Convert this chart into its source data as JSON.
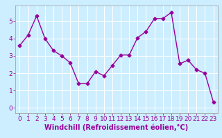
{
  "x": [
    0,
    1,
    2,
    3,
    4,
    5,
    6,
    7,
    8,
    9,
    10,
    11,
    12,
    13,
    14,
    15,
    16,
    17,
    18,
    19,
    20,
    21,
    22,
    23
  ],
  "y": [
    3.6,
    4.2,
    5.3,
    4.0,
    3.3,
    3.0,
    2.6,
    1.4,
    1.4,
    2.1,
    1.85,
    2.45,
    3.05,
    3.05,
    4.05,
    4.4,
    5.15,
    5.15,
    5.5,
    2.55,
    2.75,
    2.2,
    2.0,
    0.35
  ],
  "line_color": "#990099",
  "marker": "D",
  "marker_size": 2.5,
  "xlabel": "Windchill (Refroidissement éolien,°C)",
  "xlim": [
    -0.5,
    23.5
  ],
  "ylim": [
    -0.3,
    5.9
  ],
  "yticks": [
    0,
    1,
    2,
    3,
    4,
    5
  ],
  "xticks": [
    0,
    1,
    2,
    3,
    4,
    5,
    6,
    7,
    8,
    9,
    10,
    11,
    12,
    13,
    14,
    15,
    16,
    17,
    18,
    19,
    20,
    21,
    22,
    23
  ],
  "background_color": "#cceeff",
  "grid_color": "#ffffff",
  "xlabel_color": "#990099",
  "xlabel_fontsize": 7,
  "tick_fontsize": 6.5,
  "tick_color": "#990099",
  "line_width": 1.0
}
